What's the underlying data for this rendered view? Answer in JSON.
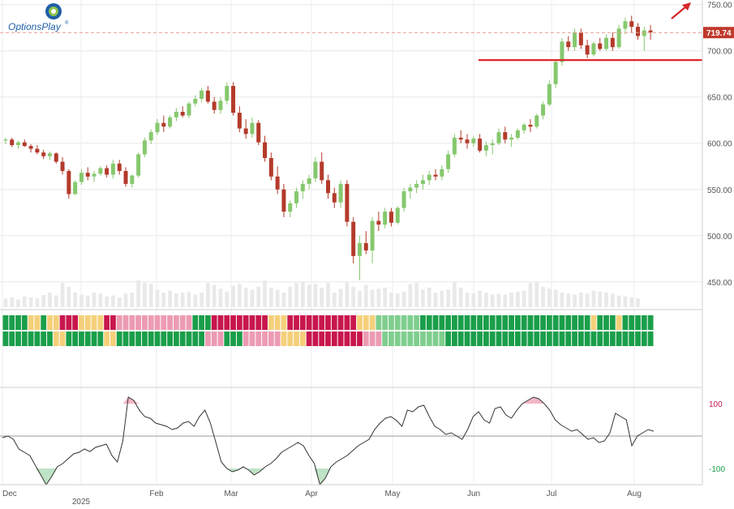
{
  "brand": {
    "name": "OptionsPlay",
    "trademark": "®"
  },
  "chart_data": [
    {
      "type": "candlestick",
      "title": "",
      "y_ticks": [
        "750.00",
        "700.00",
        "650.00",
        "600.00",
        "550.00",
        "500.00",
        "450.00"
      ],
      "ylim": [
        420,
        755
      ],
      "last_price": {
        "label": "719.74",
        "value": 719.74
      },
      "support_level": 690,
      "x_ticks": [
        "Dec",
        "2025",
        "Feb",
        "Mar",
        "Apr",
        "May",
        "Jun",
        "Jul",
        "Aug"
      ],
      "x_tick_sublabels": {
        "2025": "2025"
      },
      "trend_arrow": "up",
      "candles_ohlc_approx": [
        [
          603,
          606,
          599,
          604
        ],
        [
          604,
          606,
          596,
          598
        ],
        [
          598,
          603,
          594,
          601
        ],
        [
          601,
          604,
          596,
          597
        ],
        [
          597,
          599,
          590,
          594
        ],
        [
          594,
          598,
          588,
          590
        ],
        [
          590,
          593,
          583,
          586
        ],
        [
          586,
          591,
          582,
          589
        ],
        [
          589,
          590,
          578,
          580
        ],
        [
          580,
          585,
          566,
          570
        ],
        [
          570,
          572,
          540,
          545
        ],
        [
          545,
          560,
          544,
          558
        ],
        [
          558,
          572,
          555,
          568
        ],
        [
          568,
          574,
          560,
          564
        ],
        [
          564,
          570,
          558,
          567
        ],
        [
          567,
          575,
          565,
          573
        ],
        [
          573,
          576,
          563,
          566
        ],
        [
          566,
          582,
          562,
          578
        ],
        [
          578,
          582,
          566,
          570
        ],
        [
          570,
          574,
          553,
          556
        ],
        [
          556,
          566,
          552,
          565
        ],
        [
          565,
          590,
          563,
          588
        ],
        [
          588,
          606,
          585,
          603
        ],
        [
          603,
          615,
          599,
          612
        ],
        [
          612,
          626,
          609,
          622
        ],
        [
          622,
          630,
          612,
          618
        ],
        [
          618,
          630,
          616,
          628
        ],
        [
          628,
          638,
          624,
          634
        ],
        [
          634,
          640,
          628,
          630
        ],
        [
          630,
          645,
          627,
          643
        ],
        [
          643,
          652,
          640,
          648
        ],
        [
          648,
          660,
          644,
          657
        ],
        [
          657,
          662,
          643,
          645
        ],
        [
          645,
          650,
          632,
          636
        ],
        [
          636,
          650,
          632,
          646
        ],
        [
          646,
          666,
          642,
          662
        ],
        [
          662,
          666,
          630,
          633
        ],
        [
          633,
          640,
          612,
          616
        ],
        [
          616,
          626,
          605,
          610
        ],
        [
          610,
          628,
          606,
          622
        ],
        [
          622,
          625,
          598,
          601
        ],
        [
          601,
          608,
          580,
          584
        ],
        [
          584,
          590,
          560,
          564
        ],
        [
          564,
          575,
          545,
          550
        ],
        [
          550,
          556,
          520,
          526
        ],
        [
          526,
          538,
          520,
          535
        ],
        [
          535,
          552,
          530,
          548
        ],
        [
          548,
          560,
          540,
          556
        ],
        [
          556,
          566,
          550,
          562
        ],
        [
          562,
          585,
          558,
          580
        ],
        [
          580,
          590,
          556,
          560
        ],
        [
          560,
          566,
          540,
          546
        ],
        [
          546,
          552,
          530,
          536
        ],
        [
          536,
          560,
          530,
          556
        ],
        [
          556,
          560,
          510,
          515
        ],
        [
          515,
          520,
          470,
          478
        ],
        [
          478,
          500,
          452,
          492
        ],
        [
          492,
          505,
          480,
          484
        ],
        [
          484,
          520,
          470,
          516
        ],
        [
          516,
          526,
          505,
          512
        ],
        [
          512,
          530,
          508,
          526
        ],
        [
          526,
          530,
          510,
          514
        ],
        [
          514,
          532,
          512,
          530
        ],
        [
          530,
          552,
          526,
          548
        ],
        [
          548,
          556,
          540,
          552
        ],
        [
          552,
          560,
          546,
          556
        ],
        [
          556,
          566,
          550,
          560
        ],
        [
          560,
          570,
          555,
          566
        ],
        [
          566,
          572,
          560,
          564
        ],
        [
          564,
          576,
          560,
          572
        ],
        [
          572,
          592,
          568,
          588
        ],
        [
          588,
          610,
          585,
          606
        ],
        [
          606,
          614,
          600,
          604
        ],
        [
          604,
          610,
          594,
          600
        ],
        [
          600,
          608,
          596,
          605
        ],
        [
          605,
          610,
          590,
          592
        ],
        [
          592,
          602,
          586,
          598
        ],
        [
          598,
          604,
          588,
          600
        ],
        [
          600,
          616,
          598,
          612
        ],
        [
          612,
          618,
          600,
          604
        ],
        [
          604,
          610,
          596,
          606
        ],
        [
          606,
          616,
          604,
          614
        ],
        [
          614,
          622,
          610,
          620
        ],
        [
          620,
          626,
          612,
          618
        ],
        [
          618,
          632,
          616,
          630
        ],
        [
          630,
          645,
          626,
          642
        ],
        [
          642,
          668,
          640,
          664
        ],
        [
          664,
          690,
          660,
          688
        ],
        [
          688,
          714,
          684,
          710
        ],
        [
          710,
          716,
          700,
          704
        ],
        [
          704,
          724,
          700,
          720
        ],
        [
          720,
          724,
          702,
          706
        ],
        [
          706,
          712,
          692,
          696
        ],
        [
          696,
          710,
          694,
          708
        ],
        [
          708,
          714,
          700,
          702
        ],
        [
          702,
          718,
          700,
          714
        ],
        [
          714,
          720,
          700,
          704
        ],
        [
          704,
          728,
          702,
          724
        ],
        [
          724,
          736,
          718,
          732
        ],
        [
          732,
          738,
          720,
          726
        ],
        [
          726,
          730,
          712,
          716
        ],
        [
          716,
          726,
          700,
          722
        ],
        [
          722,
          728,
          712,
          720
        ]
      ],
      "volume_relative_approx": [
        0.18,
        0.2,
        0.16,
        0.22,
        0.2,
        0.18,
        0.25,
        0.3,
        0.24,
        0.5,
        0.42,
        0.3,
        0.26,
        0.24,
        0.3,
        0.28,
        0.22,
        0.24,
        0.2,
        0.28,
        0.3,
        0.55,
        0.5,
        0.48,
        0.36,
        0.3,
        0.34,
        0.28,
        0.3,
        0.32,
        0.26,
        0.3,
        0.5,
        0.46,
        0.38,
        0.32,
        0.44,
        0.48,
        0.4,
        0.36,
        0.42,
        0.55,
        0.4,
        0.36,
        0.3,
        0.42,
        0.5,
        0.52,
        0.46,
        0.48,
        0.4,
        0.5,
        0.3,
        0.38,
        0.52,
        0.42,
        0.34,
        0.46,
        0.36,
        0.38,
        0.4,
        0.3,
        0.28,
        0.32,
        0.48,
        0.5,
        0.36,
        0.4,
        0.3,
        0.34,
        0.36,
        0.52,
        0.4,
        0.3,
        0.28,
        0.34,
        0.3,
        0.26,
        0.28,
        0.26,
        0.3,
        0.32,
        0.34,
        0.5,
        0.52,
        0.42,
        0.38,
        0.36,
        0.3,
        0.28,
        0.26,
        0.3,
        0.28,
        0.34,
        0.32,
        0.3,
        0.28,
        0.24,
        0.22,
        0.2,
        0.18
      ],
      "indicator_rows": 2,
      "indicator_colors": {
        "strong_up": "#1a9e4a",
        "weak_up": "#7fce8e",
        "neutral": "#f5d07a",
        "weak_down": "#ec9bb2",
        "strong_down": "#c8164d"
      }
    },
    {
      "type": "line",
      "title": "",
      "y_ticks_positive": [
        "100"
      ],
      "y_ticks_negative": [
        "-100"
      ],
      "ylim": [
        -150,
        150
      ],
      "overbought": 100,
      "oversold": -100,
      "colors": {
        "line": "#333333",
        "overbought_fill": "#f2b7c6",
        "oversold_fill": "#bfe3c6",
        "pos_tick": "#c8164d",
        "neg_tick": "#1a9e4a"
      },
      "values_approx": [
        -5,
        0,
        -10,
        -40,
        -50,
        -60,
        -90,
        -120,
        -150,
        -125,
        -95,
        -85,
        -70,
        -55,
        -50,
        -40,
        -48,
        -35,
        -30,
        -25,
        -60,
        -80,
        -15,
        120,
        110,
        80,
        60,
        55,
        40,
        35,
        30,
        20,
        25,
        40,
        45,
        30,
        60,
        80,
        40,
        -20,
        -80,
        -100,
        -110,
        -105,
        -95,
        -105,
        -120,
        -110,
        -95,
        -85,
        -70,
        -50,
        -40,
        -30,
        -20,
        -30,
        -60,
        -85,
        -150,
        -130,
        -95,
        -80,
        -70,
        -60,
        -45,
        -30,
        -20,
        -10,
        20,
        40,
        55,
        60,
        48,
        30,
        80,
        75,
        90,
        95,
        60,
        30,
        20,
        5,
        10,
        0,
        -10,
        20,
        60,
        75,
        50,
        40,
        85,
        90,
        65,
        55,
        80,
        100,
        110,
        120,
        115,
        100,
        80,
        50,
        35,
        25,
        15,
        20,
        5,
        -10,
        -5,
        -20,
        -15,
        10,
        70,
        60,
        50,
        -30,
        0,
        10,
        20,
        15
      ]
    }
  ]
}
